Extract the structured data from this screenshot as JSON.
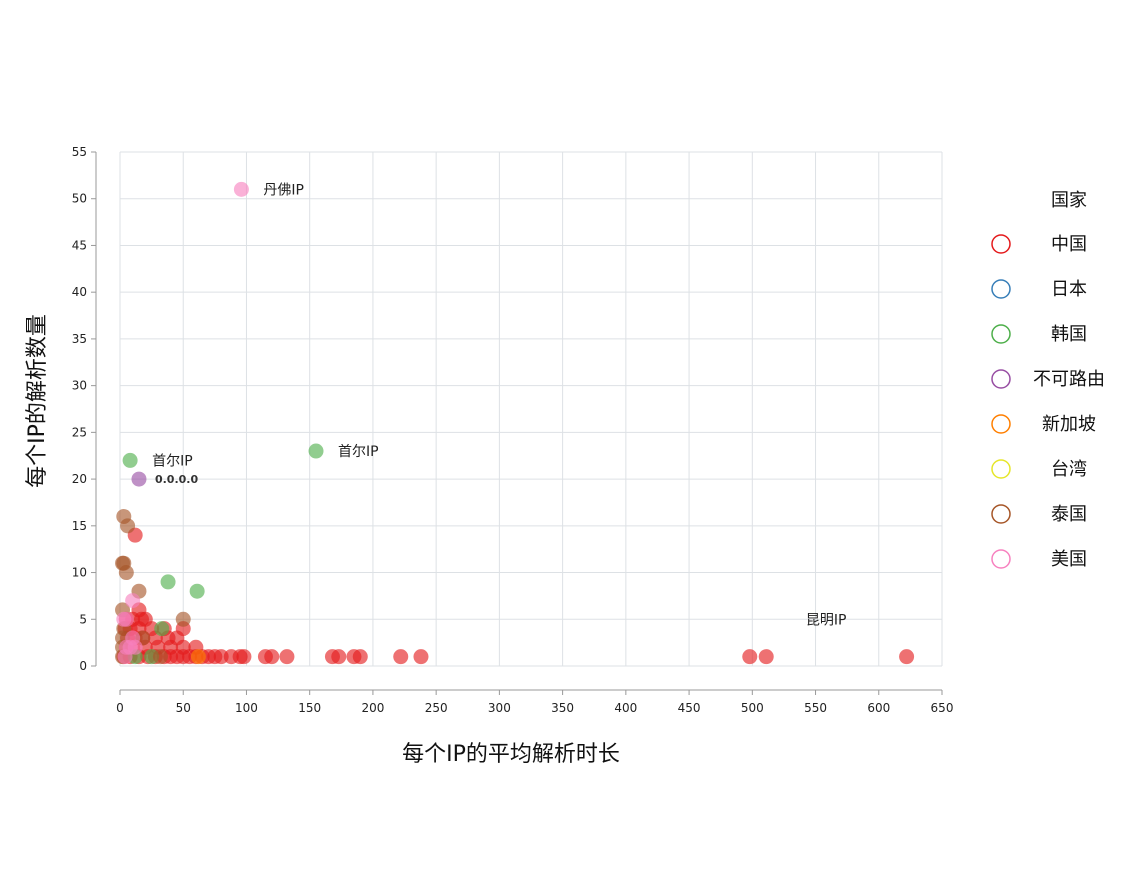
{
  "chart_data": {
    "type": "scatter",
    "xlabel": "每个IP的平均解析时长",
    "ylabel": "每个IP的解析数量",
    "xlim": [
      0,
      650
    ],
    "ylim": [
      0,
      55
    ],
    "x_ticks": [
      0,
      50,
      100,
      150,
      200,
      250,
      300,
      350,
      400,
      450,
      500,
      550,
      600,
      650
    ],
    "y_ticks": [
      0,
      5,
      10,
      15,
      20,
      25,
      30,
      35,
      40,
      45,
      50,
      55
    ],
    "grid": true,
    "legend": {
      "title": "国家",
      "placement": "right"
    },
    "series": [
      {
        "name": "中国",
        "color": "#e41a1c",
        "points": [
          [
            12,
            14
          ],
          [
            15,
            6
          ],
          [
            17,
            5
          ],
          [
            5,
            5
          ],
          [
            10,
            5
          ],
          [
            20,
            5
          ],
          [
            4,
            4
          ],
          [
            8,
            4
          ],
          [
            15,
            4
          ],
          [
            25,
            4
          ],
          [
            35,
            4
          ],
          [
            50,
            4
          ],
          [
            6,
            3
          ],
          [
            12,
            3
          ],
          [
            18,
            3
          ],
          [
            28,
            3
          ],
          [
            38,
            3
          ],
          [
            45,
            3
          ],
          [
            5,
            2
          ],
          [
            10,
            2
          ],
          [
            20,
            2
          ],
          [
            30,
            2
          ],
          [
            40,
            2
          ],
          [
            50,
            2
          ],
          [
            60,
            2
          ],
          [
            3,
            1
          ],
          [
            8,
            1
          ],
          [
            15,
            1
          ],
          [
            22,
            1
          ],
          [
            28,
            1
          ],
          [
            35,
            1
          ],
          [
            40,
            1
          ],
          [
            45,
            1
          ],
          [
            50,
            1
          ],
          [
            55,
            1
          ],
          [
            60,
            1
          ],
          [
            65,
            1
          ],
          [
            70,
            1
          ],
          [
            75,
            1
          ],
          [
            80,
            1
          ],
          [
            88,
            1
          ],
          [
            95,
            1
          ],
          [
            98,
            1
          ],
          [
            115,
            1
          ],
          [
            120,
            1
          ],
          [
            132,
            1
          ],
          [
            168,
            1
          ],
          [
            173,
            1
          ],
          [
            185,
            1
          ],
          [
            190,
            1
          ],
          [
            222,
            1
          ],
          [
            238,
            1
          ],
          [
            498,
            1
          ],
          [
            511,
            1
          ],
          [
            622,
            1
          ]
        ]
      },
      {
        "name": "日本",
        "color": "#377eb8",
        "points": []
      },
      {
        "name": "韩国",
        "color": "#4daf4a",
        "points": [
          [
            8,
            22
          ],
          [
            155,
            23
          ],
          [
            38,
            9
          ],
          [
            61,
            8
          ],
          [
            33,
            4
          ],
          [
            25,
            1
          ],
          [
            12,
            1
          ]
        ]
      },
      {
        "name": "不可路由",
        "color": "#984ea3",
        "points": [
          [
            15,
            20
          ]
        ]
      },
      {
        "name": "新加坡",
        "color": "#ff7f00",
        "points": [
          [
            62,
            1
          ]
        ]
      },
      {
        "name": "台湾",
        "color": "#e6e62a",
        "points": []
      },
      {
        "name": "泰国",
        "color": "#a65628",
        "points": [
          [
            3,
            16
          ],
          [
            6,
            15
          ],
          [
            2,
            11
          ],
          [
            3,
            11
          ],
          [
            5,
            10
          ],
          [
            15,
            8
          ],
          [
            2,
            6
          ],
          [
            50,
            5
          ],
          [
            3,
            4
          ],
          [
            2,
            3
          ],
          [
            18,
            3
          ],
          [
            2,
            2
          ],
          [
            2,
            1
          ],
          [
            32,
            1
          ]
        ]
      },
      {
        "name": "美国",
        "color": "#f781bf",
        "points": [
          [
            96,
            51
          ],
          [
            10,
            7
          ],
          [
            3,
            5
          ],
          [
            5,
            5
          ],
          [
            10,
            3
          ],
          [
            8,
            2
          ],
          [
            12,
            2
          ],
          [
            5,
            2
          ],
          [
            4,
            1
          ]
        ]
      }
    ],
    "annotations": [
      {
        "text": "丹佛IP",
        "x": 96,
        "y": 51,
        "style": "normal"
      },
      {
        "text": "首尔IP",
        "x": 8,
        "y": 22,
        "style": "normal"
      },
      {
        "text": "首尔IP",
        "x": 155,
        "y": 23,
        "style": "normal"
      },
      {
        "text": "0.0.0.0",
        "x": 15,
        "y": 20,
        "style": "small"
      },
      {
        "text": "昆明IP",
        "x": 525,
        "y": 5,
        "style": "normal"
      }
    ]
  }
}
